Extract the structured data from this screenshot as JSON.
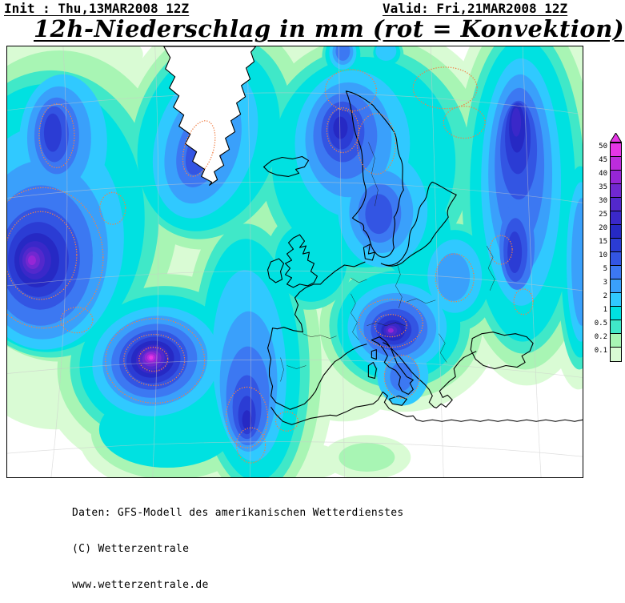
{
  "header": {
    "init_label": "Init : Thu,13MAR2008 12Z",
    "valid_label": "Valid: Fri,21MAR2008 12Z",
    "title": "12h-Niederschlag in mm (rot = Konvektion)"
  },
  "legend": {
    "arrow_color": "#e636e6",
    "entries": [
      {
        "value": "50",
        "color": "#e636e6"
      },
      {
        "value": "45",
        "color": "#bc2cdc"
      },
      {
        "value": "40",
        "color": "#9626d6"
      },
      {
        "value": "35",
        "color": "#7128d0"
      },
      {
        "value": "30",
        "color": "#5328cc"
      },
      {
        "value": "25",
        "color": "#3a28c9"
      },
      {
        "value": "20",
        "color": "#2629c4"
      },
      {
        "value": "15",
        "color": "#2b3cd4"
      },
      {
        "value": "10",
        "color": "#3355e3"
      },
      {
        "value": "5",
        "color": "#3c78f2"
      },
      {
        "value": "3",
        "color": "#3aa0fb"
      },
      {
        "value": "2",
        "color": "#30c9ff"
      },
      {
        "value": "1",
        "color": "#00e1e1"
      },
      {
        "value": "0.5",
        "color": "#40e8c8"
      },
      {
        "value": "0.2",
        "color": "#a8f5b4"
      },
      {
        "value": "0.1",
        "color": "#d9fbd4"
      }
    ]
  },
  "footer": {
    "line1": "Daten: GFS-Modell des amerikanischen Wetterdienstes",
    "line2": "(C) Wetterzentrale",
    "line3": "www.wetterzentrale.de"
  }
}
